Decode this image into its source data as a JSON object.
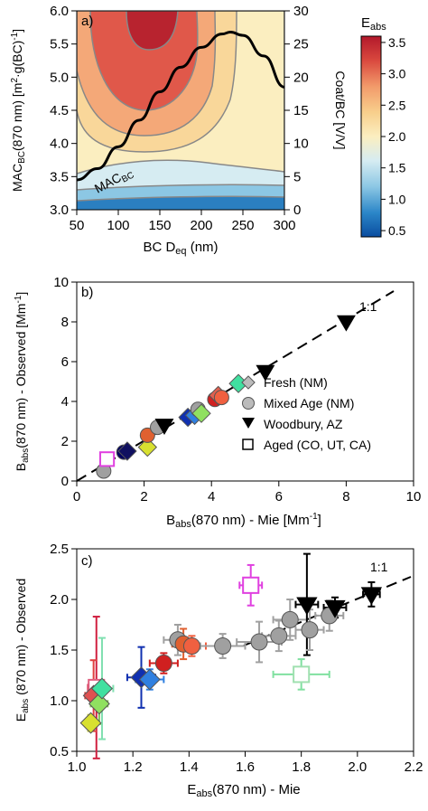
{
  "chart_data": [
    {
      "type": "heatmap",
      "panel": "a)",
      "xlabel": "BC D",
      "xlabel_sub": "eq",
      "xlabel_tail": " (nm)",
      "ylabel": "MAC",
      "ylabel_sub": "BC",
      "ylabel_tail": "(870 nm) [m",
      "ylabel_sup": "2",
      "ylabel_end": "·g(BC)",
      "ylabel_sup2": "-1",
      "ylabel_close": "]",
      "y2label": "Coat/BC [V/V]",
      "colorbar_label": "E",
      "colorbar_label_sub": "abs",
      "xlim": [
        50,
        300
      ],
      "ylim": [
        3.0,
        6.0
      ],
      "y2lim": [
        0,
        30
      ],
      "xticks": [
        50,
        100,
        150,
        200,
        250,
        300
      ],
      "yticks": [
        "3.0",
        "3.5",
        "4.0",
        "4.5",
        "5.0",
        "5.5",
        "6.0"
      ],
      "y2ticks": [
        0,
        5,
        10,
        15,
        20,
        25,
        30
      ],
      "colorbar_range": [
        0.4,
        3.6
      ],
      "colorbar_ticks": [
        "0.5",
        "1.0",
        "1.5",
        "2.0",
        "2.5",
        "3.0",
        "3.5"
      ],
      "curve_label": "MAC",
      "curve_label_sub": "BC",
      "mac_curve": {
        "x": [
          50,
          75,
          100,
          125,
          150,
          175,
          200,
          225,
          235,
          250,
          275,
          300
        ],
        "y": [
          3.45,
          3.62,
          3.95,
          4.35,
          4.78,
          5.15,
          5.45,
          5.65,
          5.68,
          5.63,
          5.32,
          4.85
        ]
      },
      "contour_levels": [
        1.0,
        1.5,
        2.0,
        2.5,
        3.0
      ]
    },
    {
      "type": "scatter",
      "panel": "b)",
      "xlabel": "B",
      "xlabel_sub": "abs",
      "xlabel_tail": "(870 nm) - Mie [Mm",
      "xlabel_sup": "-1",
      "xlabel_close": "]",
      "ylabel": "B",
      "ylabel_sub": "abs",
      "ylabel_tail": "(870 nm) - Observed [Mm",
      "ylabel_sup": "-1",
      "ylabel_close": "]",
      "xlim": [
        0,
        10
      ],
      "ylim": [
        0,
        10
      ],
      "xticks": [
        0,
        2,
        4,
        6,
        8,
        10
      ],
      "yticks": [
        0,
        2,
        4,
        6,
        8,
        10
      ],
      "one_to_one_label": "1:1",
      "legend": [
        "Fresh (NM)",
        "Mixed Age (NM)",
        "Woodbury, AZ",
        "Aged (CO, UT, CA)"
      ],
      "points": [
        {
          "x": 0.8,
          "y": 0.5,
          "marker": "circle",
          "color": "#a0a0a0"
        },
        {
          "x": 0.9,
          "y": 1.1,
          "marker": "square",
          "color": "#e040e0"
        },
        {
          "x": 1.4,
          "y": 1.45,
          "marker": "circle",
          "color": "#000060"
        },
        {
          "x": 1.5,
          "y": 1.5,
          "marker": "diamond",
          "color": "#101060"
        },
        {
          "x": 2.1,
          "y": 1.7,
          "marker": "diamond",
          "color": "#d8e030"
        },
        {
          "x": 2.1,
          "y": 2.3,
          "marker": "circle",
          "color": "#e06030"
        },
        {
          "x": 2.4,
          "y": 2.7,
          "marker": "circle",
          "color": "#a0a0a0"
        },
        {
          "x": 2.6,
          "y": 2.8,
          "marker": "triangle",
          "color": "#000000"
        },
        {
          "x": 3.3,
          "y": 3.2,
          "marker": "diamond",
          "color": "#1030b0"
        },
        {
          "x": 3.5,
          "y": 3.3,
          "marker": "diamond",
          "color": "#3080e0"
        },
        {
          "x": 3.6,
          "y": 3.6,
          "marker": "circle",
          "color": "#a0a0a0"
        },
        {
          "x": 3.7,
          "y": 3.4,
          "marker": "diamond",
          "color": "#90e060"
        },
        {
          "x": 4.1,
          "y": 4.1,
          "marker": "circle",
          "color": "#d02020"
        },
        {
          "x": 4.2,
          "y": 4.3,
          "marker": "diamond",
          "color": "#e06050"
        },
        {
          "x": 4.3,
          "y": 4.2,
          "marker": "circle",
          "color": "#f06040"
        },
        {
          "x": 4.8,
          "y": 4.9,
          "marker": "diamond",
          "color": "#40e0a0"
        },
        {
          "x": 5.6,
          "y": 5.5,
          "marker": "triangle",
          "color": "#000000"
        },
        {
          "x": 8.0,
          "y": 8.0,
          "marker": "triangle",
          "color": "#000000"
        }
      ]
    },
    {
      "type": "scatter",
      "panel": "c)",
      "xlabel": "E",
      "xlabel_sub": "abs",
      "xlabel_tail": "(870 nm) - Mie",
      "ylabel": "E",
      "ylabel_sub": "abs",
      "ylabel_tail": " (870 nm) - Observed",
      "xlim": [
        1.0,
        2.2
      ],
      "ylim": [
        0.5,
        2.5
      ],
      "xticks": [
        "1.0",
        "1.2",
        "1.4",
        "1.6",
        "1.8",
        "2.0",
        "2.2"
      ],
      "yticks": [
        "0.5",
        "1.0",
        "1.5",
        "2.0",
        "2.5"
      ],
      "one_to_one_label": "1:1",
      "points": [
        {
          "x": 1.05,
          "y": 0.78,
          "marker": "diamond",
          "color": "#d8e030",
          "ex": 0.02,
          "ey": 0.08,
          "ecolor": "#c8d040"
        },
        {
          "x": 1.07,
          "y": 1.13,
          "marker": "square",
          "color": "#e06080",
          "ex": 0.03,
          "ey": 0.7,
          "ecolor": "#d02040"
        },
        {
          "x": 1.06,
          "y": 1.05,
          "marker": "diamond",
          "color": "#e05050",
          "ex": 0.03,
          "ey": 0.35,
          "ecolor": "#e04040"
        },
        {
          "x": 1.08,
          "y": 0.97,
          "marker": "diamond",
          "color": "#90e060",
          "ex": 0.03,
          "ey": 0.2,
          "ecolor": "#80c050"
        },
        {
          "x": 1.09,
          "y": 1.12,
          "marker": "diamond",
          "color": "#40e0a0",
          "ex": 0.04,
          "ey": 0.5,
          "ecolor": "#80e0b0"
        },
        {
          "x": 1.23,
          "y": 1.23,
          "marker": "diamond",
          "color": "#1030b0",
          "ex": 0.05,
          "ey": 0.3,
          "ecolor": "#1030b0"
        },
        {
          "x": 1.26,
          "y": 1.21,
          "marker": "diamond",
          "color": "#3080e0",
          "ex": 0.05,
          "ey": 0.1,
          "ecolor": "#3080e0"
        },
        {
          "x": 1.31,
          "y": 1.37,
          "marker": "circle",
          "color": "#d02020",
          "ex": 0.05,
          "ey": 0.1,
          "ecolor": "#d02020"
        },
        {
          "x": 1.36,
          "y": 1.6,
          "marker": "circle",
          "color": "#a0a0a0",
          "ex": 0.05,
          "ey": 0.15,
          "ecolor": "#a0a0a0"
        },
        {
          "x": 1.38,
          "y": 1.56,
          "marker": "circle",
          "color": "#e06030",
          "ex": 0.04,
          "ey": 0.15,
          "ecolor": "#e06030"
        },
        {
          "x": 1.41,
          "y": 1.54,
          "marker": "circle",
          "color": "#f06040",
          "ex": 0.05,
          "ey": 0.1,
          "ecolor": "#f06040"
        },
        {
          "x": 1.52,
          "y": 1.54,
          "marker": "circle",
          "color": "#a0a0a0",
          "ex": 0.08,
          "ey": 0.12,
          "ecolor": "#a0a0a0"
        },
        {
          "x": 1.62,
          "y": 2.14,
          "marker": "square",
          "color": "#e040e0",
          "ex": 0.04,
          "ey": 0.2,
          "ecolor": "#e040e0"
        },
        {
          "x": 1.65,
          "y": 1.58,
          "marker": "circle",
          "color": "#a0a0a0",
          "ex": 0.08,
          "ey": 0.2,
          "ecolor": "#a0a0a0"
        },
        {
          "x": 1.72,
          "y": 1.64,
          "marker": "circle",
          "color": "#a0a0a0",
          "ex": 0.06,
          "ey": 0.15,
          "ecolor": "#a0a0a0"
        },
        {
          "x": 1.76,
          "y": 1.8,
          "marker": "circle",
          "color": "#a0a0a0",
          "ex": 0.06,
          "ey": 0.2,
          "ecolor": "#a0a0a0"
        },
        {
          "x": 1.8,
          "y": 1.26,
          "marker": "square",
          "color": "#a0e0b0",
          "ex": 0.1,
          "ey": 0.15,
          "ecolor": "#80e0a0"
        },
        {
          "x": 1.82,
          "y": 1.95,
          "marker": "triangle",
          "color": "#000000",
          "ex": 0.04,
          "ey": 0.5,
          "ecolor": "#000000"
        },
        {
          "x": 1.83,
          "y": 1.7,
          "marker": "circle",
          "color": "#a0a0a0",
          "ex": 0.05,
          "ey": 0.2,
          "ecolor": "#a0a0a0"
        },
        {
          "x": 1.9,
          "y": 1.84,
          "marker": "circle",
          "color": "#a0a0a0",
          "ex": 0.05,
          "ey": 0.15,
          "ecolor": "#a0a0a0"
        },
        {
          "x": 1.92,
          "y": 1.92,
          "marker": "triangle",
          "color": "#000000",
          "ex": 0.04,
          "ey": 0.1,
          "ecolor": "#000000"
        },
        {
          "x": 2.05,
          "y": 2.05,
          "marker": "triangle",
          "color": "#000000",
          "ex": 0.03,
          "ey": 0.12,
          "ecolor": "#000000"
        }
      ]
    }
  ]
}
